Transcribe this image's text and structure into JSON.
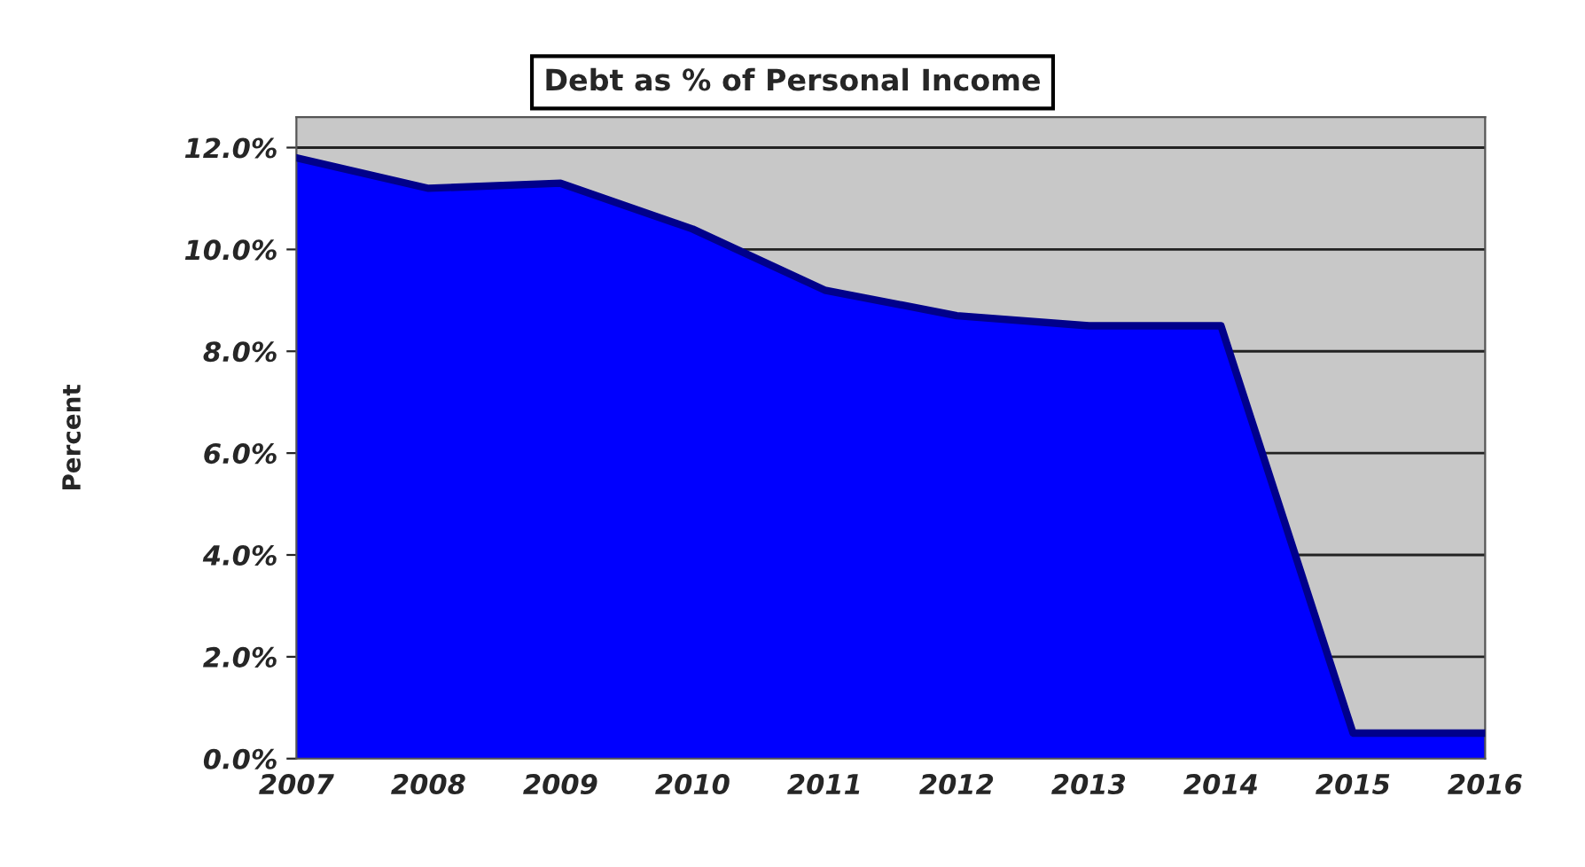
{
  "chart_data": {
    "type": "area",
    "title": "Debt as % of Personal Income",
    "ylabel": "Percent",
    "categories": [
      "2007",
      "2008",
      "2009",
      "2010",
      "2011",
      "2012",
      "2013",
      "2014",
      "2015",
      "2016"
    ],
    "series": [
      {
        "color": "#0000ff",
        "values": [
          11.8,
          11.2,
          11.3,
          10.4,
          9.2,
          8.7,
          8.5,
          8.5,
          0.5,
          0.5
        ]
      }
    ],
    "ylim": [
      0,
      12.6
    ],
    "yticks": [
      {
        "value": 0,
        "label": "0.0%"
      },
      {
        "value": 2,
        "label": "2.0%"
      },
      {
        "value": 4,
        "label": "4.0%"
      },
      {
        "value": 6,
        "label": "6.0%"
      },
      {
        "value": 8,
        "label": "8.0%"
      },
      {
        "value": 10,
        "label": "10.0%"
      },
      {
        "value": 12,
        "label": "12.0%"
      }
    ],
    "grid": "y",
    "legend": false
  }
}
